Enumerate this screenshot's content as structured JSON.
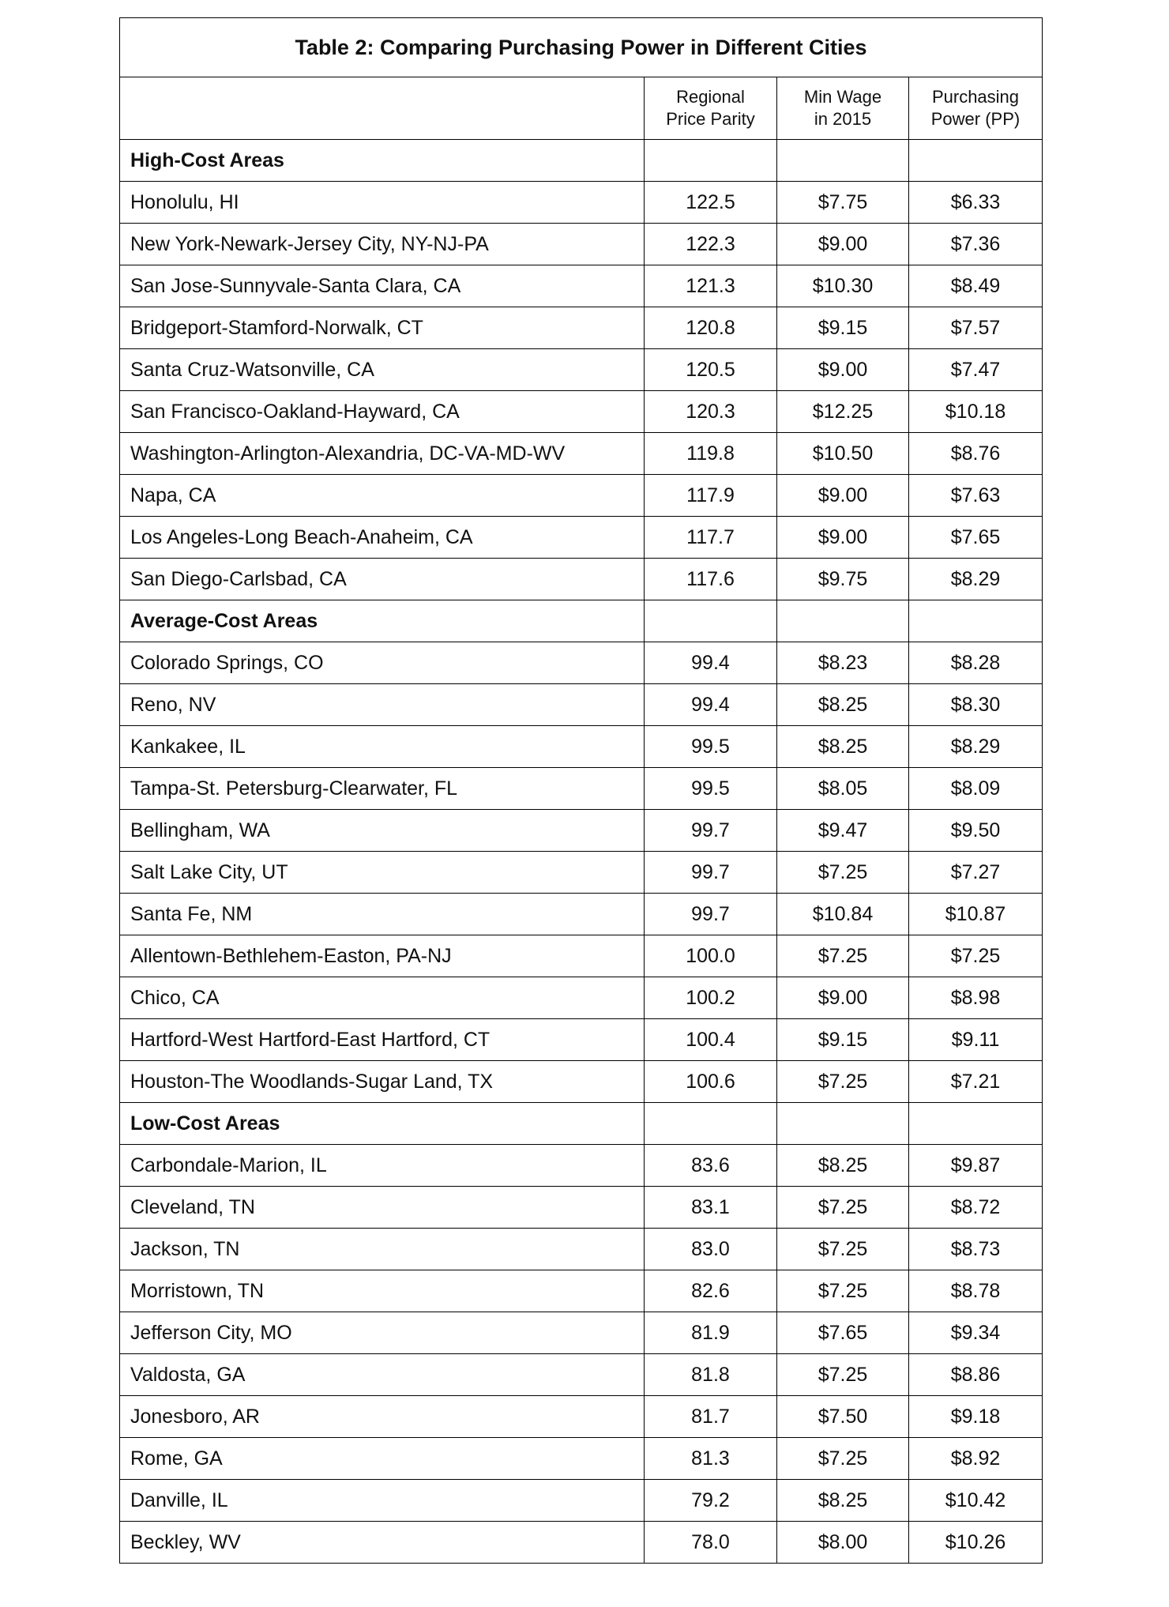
{
  "title": "Table 2: Comparing Purchasing Power in Different Cities",
  "columns": [
    [
      "Regional",
      "Price Parity"
    ],
    [
      "Min Wage",
      "in 2015"
    ],
    [
      "Purchasing",
      "Power (PP)"
    ]
  ],
  "sections": [
    {
      "name": "High-Cost Areas",
      "rows": [
        [
          "Honolulu, HI",
          "122.5",
          "$7.75",
          "$6.33"
        ],
        [
          "New York-Newark-Jersey City, NY-NJ-PA",
          "122.3",
          "$9.00",
          "$7.36"
        ],
        [
          "San Jose-Sunnyvale-Santa Clara, CA",
          "121.3",
          "$10.30",
          "$8.49"
        ],
        [
          "Bridgeport-Stamford-Norwalk, CT",
          "120.8",
          "$9.15",
          "$7.57"
        ],
        [
          "Santa Cruz-Watsonville, CA",
          "120.5",
          "$9.00",
          "$7.47"
        ],
        [
          "San Francisco-Oakland-Hayward, CA",
          "120.3",
          "$12.25",
          "$10.18"
        ],
        [
          "Washington-Arlington-Alexandria, DC-VA-MD-WV",
          "119.8",
          "$10.50",
          "$8.76"
        ],
        [
          "Napa, CA",
          "117.9",
          "$9.00",
          "$7.63"
        ],
        [
          "Los Angeles-Long Beach-Anaheim, CA",
          "117.7",
          "$9.00",
          "$7.65"
        ],
        [
          "San Diego-Carlsbad, CA",
          "117.6",
          "$9.75",
          "$8.29"
        ]
      ]
    },
    {
      "name": "Average-Cost Areas",
      "rows": [
        [
          "Colorado Springs, CO",
          "99.4",
          "$8.23",
          "$8.28"
        ],
        [
          "Reno, NV",
          "99.4",
          "$8.25",
          "$8.30"
        ],
        [
          "Kankakee, IL",
          "99.5",
          "$8.25",
          "$8.29"
        ],
        [
          "Tampa-St. Petersburg-Clearwater, FL",
          "99.5",
          "$8.05",
          "$8.09"
        ],
        [
          "Bellingham, WA",
          "99.7",
          "$9.47",
          "$9.50"
        ],
        [
          "Salt Lake City, UT",
          "99.7",
          "$7.25",
          "$7.27"
        ],
        [
          "Santa Fe, NM",
          "99.7",
          "$10.84",
          "$10.87"
        ],
        [
          "Allentown-Bethlehem-Easton, PA-NJ",
          "100.0",
          "$7.25",
          "$7.25"
        ],
        [
          "Chico, CA",
          "100.2",
          "$9.00",
          "$8.98"
        ],
        [
          "Hartford-West Hartford-East Hartford, CT",
          "100.4",
          "$9.15",
          "$9.11"
        ],
        [
          "Houston-The Woodlands-Sugar Land, TX",
          "100.6",
          "$7.25",
          "$7.21"
        ]
      ]
    },
    {
      "name": "Low-Cost Areas",
      "rows": [
        [
          "Carbondale-Marion, IL",
          "83.6",
          "$8.25",
          "$9.87"
        ],
        [
          "Cleveland, TN",
          "83.1",
          "$7.25",
          "$8.72"
        ],
        [
          "Jackson, TN",
          "83.0",
          "$7.25",
          "$8.73"
        ],
        [
          "Morristown, TN",
          "82.6",
          "$7.25",
          "$8.78"
        ],
        [
          "Jefferson City, MO",
          "81.9",
          "$7.65",
          "$9.34"
        ],
        [
          "Valdosta, GA",
          "81.8",
          "$7.25",
          "$8.86"
        ],
        [
          "Jonesboro, AR",
          "81.7",
          "$7.50",
          "$9.18"
        ],
        [
          "Rome, GA",
          "81.3",
          "$7.25",
          "$8.92"
        ],
        [
          "Danville, IL",
          "79.2",
          "$8.25",
          "$10.42"
        ],
        [
          "Beckley, WV",
          "78.0",
          "$8.00",
          "$10.26"
        ]
      ]
    }
  ]
}
